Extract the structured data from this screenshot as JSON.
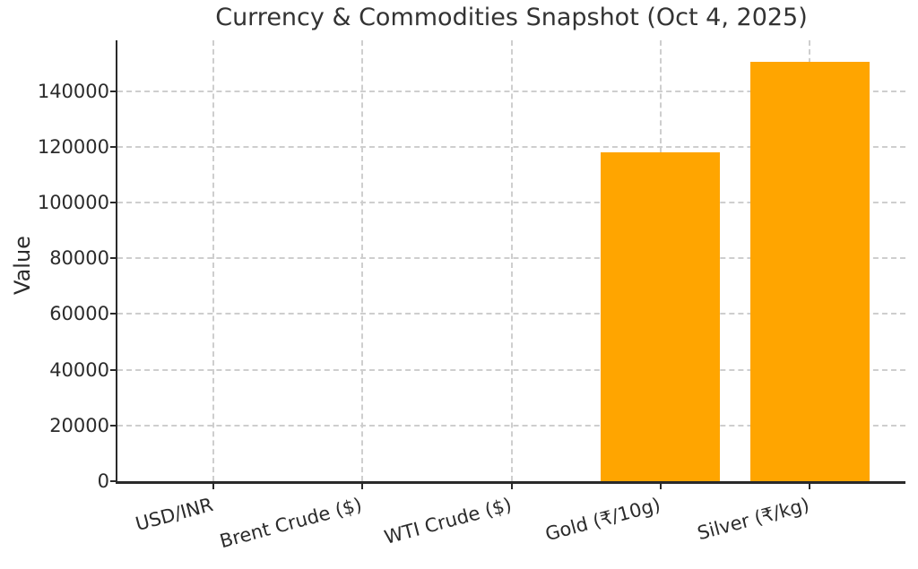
{
  "figure": {
    "background": "#ffffff"
  },
  "chart_data": {
    "type": "bar",
    "title": "Currency & Commodities Snapshot (Oct 4, 2025)",
    "xlabel": "",
    "ylabel": "Value",
    "categories": [
      "USD/INR",
      "Brent Crude ($)",
      "WTI Crude ($)",
      "Gold (₹/10g)",
      "Silver (₹/kg)"
    ],
    "values": [
      88.8,
      65.5,
      61.9,
      118000,
      150500
    ],
    "bar_color": "#FFA500",
    "yticks": [
      0,
      20000,
      40000,
      60000,
      80000,
      100000,
      120000,
      140000
    ],
    "ylim": [
      0,
      158200
    ],
    "grid": true,
    "grid_line_style": "dashed",
    "grid_color": "#cecece",
    "axis_color": "#2a2a2a",
    "text_color": "#2b2b2b",
    "x_tick_label_rotation_deg": 15,
    "legend_position": "none"
  }
}
